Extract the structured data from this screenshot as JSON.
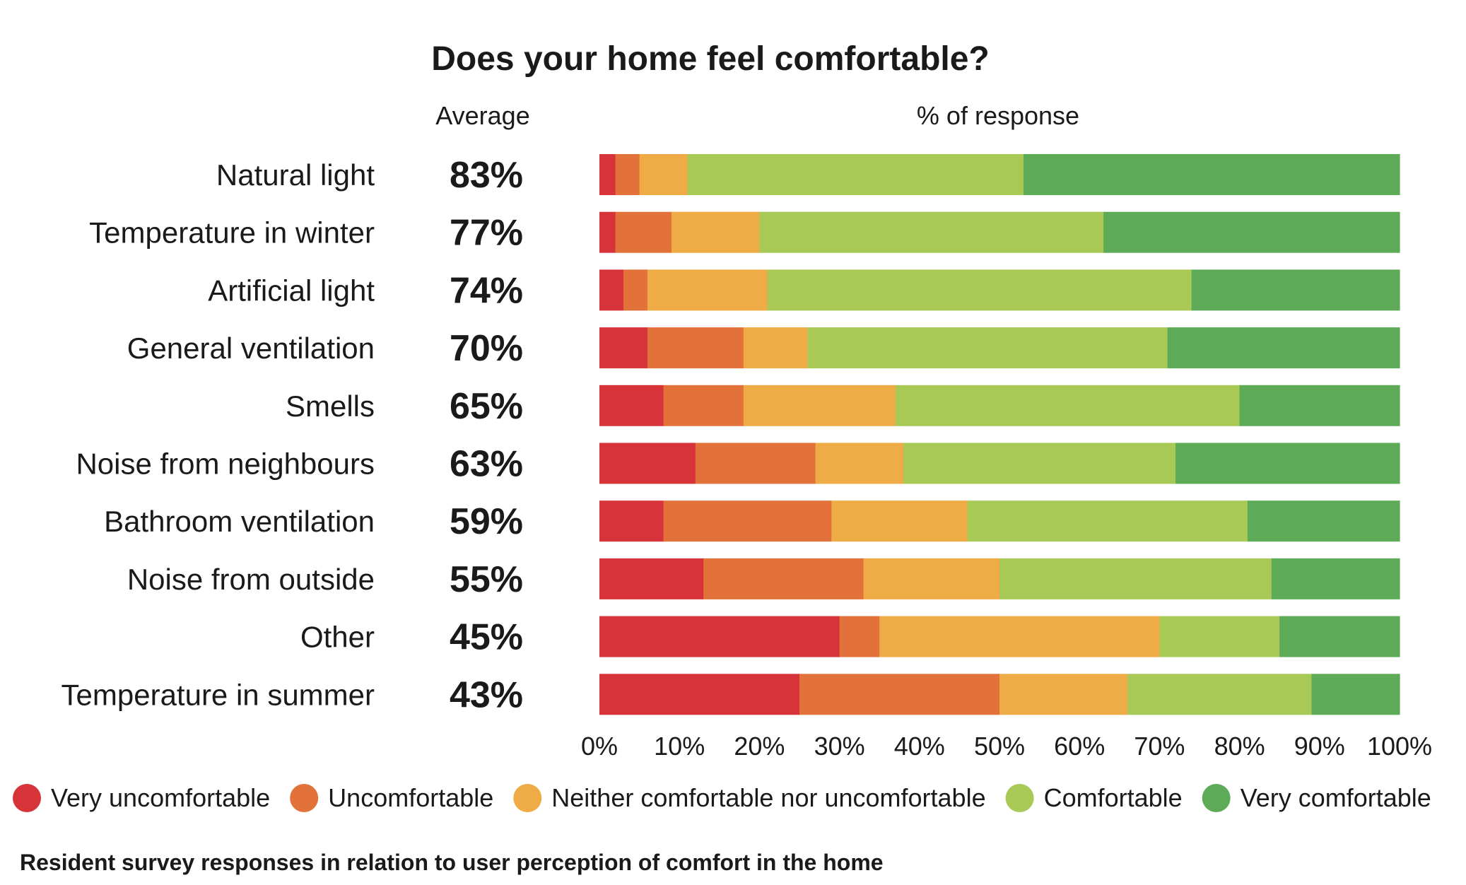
{
  "chart_data": {
    "type": "bar",
    "orientation": "horizontal",
    "stacked": true,
    "title": "Does your home feel comfortable?",
    "average_header": "Average",
    "response_header": "% of response",
    "caption": "Resident survey responses in relation to user perception of comfort in the home",
    "categories": [
      "Natural light",
      "Temperature in winter",
      "Artificial light",
      "General ventilation",
      "Smells",
      "Noise from neighbours",
      "Bathroom ventilation",
      "Noise from outside",
      "Other",
      "Temperature in summer"
    ],
    "averages": [
      "83%",
      "77%",
      "74%",
      "70%",
      "65%",
      "63%",
      "59%",
      "55%",
      "45%",
      "43%"
    ],
    "xlim": [
      0,
      100
    ],
    "x_ticks": [
      "0%",
      "10%",
      "20%",
      "30%",
      "40%",
      "50%",
      "60%",
      "70%",
      "80%",
      "90%",
      "100%"
    ],
    "grid": false,
    "legend_position": "bottom",
    "series": [
      {
        "name": "Very uncomfortable",
        "color": "#d7343a",
        "values": [
          2,
          2,
          3,
          6,
          8,
          12,
          8,
          13,
          30,
          25
        ]
      },
      {
        "name": "Uncomfortable",
        "color": "#e2713a",
        "values": [
          3,
          7,
          3,
          12,
          10,
          15,
          21,
          20,
          5,
          25
        ]
      },
      {
        "name": "Neither comfortable nor uncomfortable",
        "color": "#efab45",
        "values": [
          6,
          11,
          15,
          8,
          19,
          11,
          17,
          17,
          35,
          16
        ]
      },
      {
        "name": "Comfortable",
        "color": "#a8c956",
        "values": [
          42,
          43,
          53,
          45,
          43,
          34,
          35,
          34,
          15,
          23
        ]
      },
      {
        "name": "Very comfortable",
        "color": "#5dab57",
        "values": [
          47,
          37,
          26,
          29,
          20,
          28,
          19,
          16,
          15,
          11
        ]
      }
    ]
  }
}
